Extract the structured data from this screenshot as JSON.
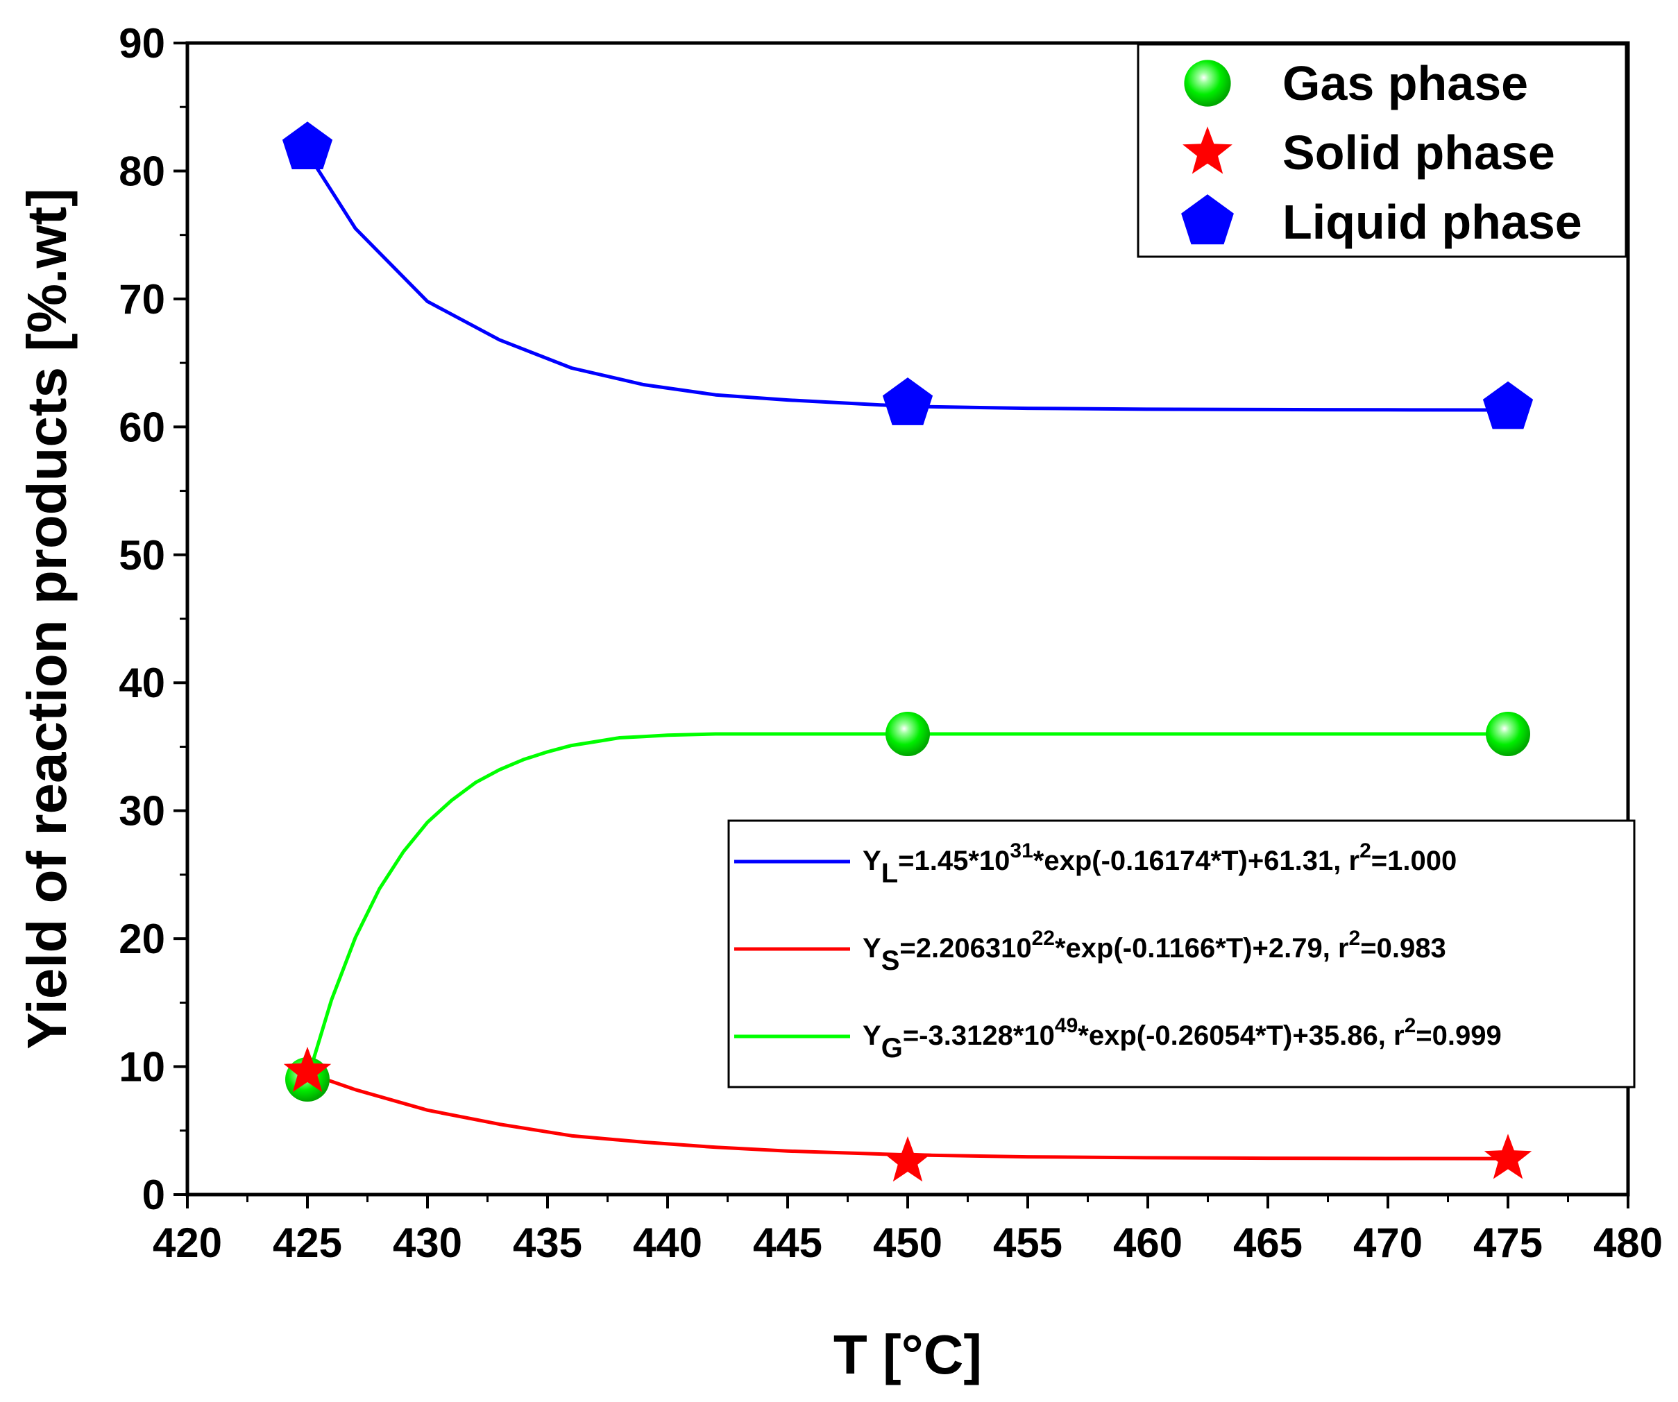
{
  "chart_data": {
    "type": "scatter",
    "xlabel": "T [°C]",
    "ylabel": "Yield of reaction products [%.wt]",
    "xlim": [
      420,
      480
    ],
    "ylim": [
      0,
      90
    ],
    "xticks": [
      420,
      425,
      430,
      435,
      440,
      445,
      450,
      455,
      460,
      465,
      470,
      475,
      480
    ],
    "yticks": [
      0,
      10,
      20,
      30,
      40,
      50,
      60,
      70,
      80,
      90
    ],
    "grid": false,
    "legend_position": "top-right",
    "series": [
      {
        "name": "Gas phase",
        "marker": "sphere",
        "color": "#00ee00",
        "x": [
          425,
          450,
          475
        ],
        "y": [
          9.0,
          36.0,
          36.0
        ],
        "fit": {
          "label": "YG=-3.3128*10^49*exp(-0.26054*T)+35.86, r^2=0.999",
          "color": "#00ff00",
          "curve_x": [
            425,
            426,
            427,
            428,
            429,
            430,
            431,
            432,
            433,
            434,
            435,
            436,
            437,
            438,
            439,
            440,
            442,
            444,
            446,
            448,
            450,
            455,
            460,
            465,
            470,
            475
          ],
          "curve_y": [
            9.0,
            15.2,
            20.1,
            23.9,
            26.8,
            29.1,
            30.8,
            32.2,
            33.2,
            34.0,
            34.6,
            35.1,
            35.4,
            35.7,
            35.8,
            35.9,
            36.0,
            36.0,
            36.0,
            36.0,
            36.0,
            36.0,
            36.0,
            36.0,
            36.0,
            36.0
          ]
        }
      },
      {
        "name": "Solid phase",
        "marker": "star",
        "color": "#ff0000",
        "x": [
          425,
          450,
          475
        ],
        "y": [
          9.6,
          2.6,
          2.8
        ],
        "fit": {
          "label": "YS=2.206310^22*exp(-0.1166*T)+2.79, r^2=0.983",
          "color": "#ff0000",
          "curve_x": [
            425,
            427,
            430,
            433,
            436,
            439,
            442,
            445,
            450,
            455,
            460,
            465,
            470,
            475
          ],
          "curve_y": [
            9.5,
            8.2,
            6.6,
            5.5,
            4.6,
            4.1,
            3.7,
            3.4,
            3.1,
            2.95,
            2.88,
            2.84,
            2.82,
            2.81
          ]
        }
      },
      {
        "name": "Liquid phase",
        "marker": "pentagon",
        "color": "#0000ff",
        "x": [
          425,
          450,
          475
        ],
        "y": [
          81.8,
          61.8,
          61.5
        ],
        "fit": {
          "label": "YL=1.45*10^31*exp(-0.16174*T)+61.31, r^2=1.000",
          "color": "#0000ff",
          "curve_x": [
            425,
            427,
            430,
            433,
            436,
            439,
            442,
            445,
            448,
            450,
            455,
            460,
            465,
            470,
            475
          ],
          "curve_y": [
            81.4,
            75.5,
            69.8,
            66.8,
            64.6,
            63.3,
            62.5,
            62.1,
            61.8,
            61.6,
            61.45,
            61.38,
            61.35,
            61.33,
            61.32
          ]
        }
      }
    ],
    "fit_legend": [
      {
        "main": "Y",
        "sub": "L",
        "text": "=1.45*10",
        "sup": "31",
        "rest": "*exp(-0.16174*T)+61.31, r",
        "sup2": "2",
        "end": "=1.000",
        "color": "#0000ff"
      },
      {
        "main": "Y",
        "sub": "S",
        "text": "=2.206310",
        "sup": "22",
        "rest": "*exp(-0.1166*T)+2.79, r",
        "sup2": "2",
        "end": "=0.983",
        "color": "#ff0000"
      },
      {
        "main": "Y",
        "sub": "G",
        "text": "=-3.3128*10",
        "sup": "49",
        "rest": "*exp(-0.26054*T)+35.86, r",
        "sup2": "2",
        "end": "=0.999",
        "color": "#00ff00"
      }
    ]
  }
}
